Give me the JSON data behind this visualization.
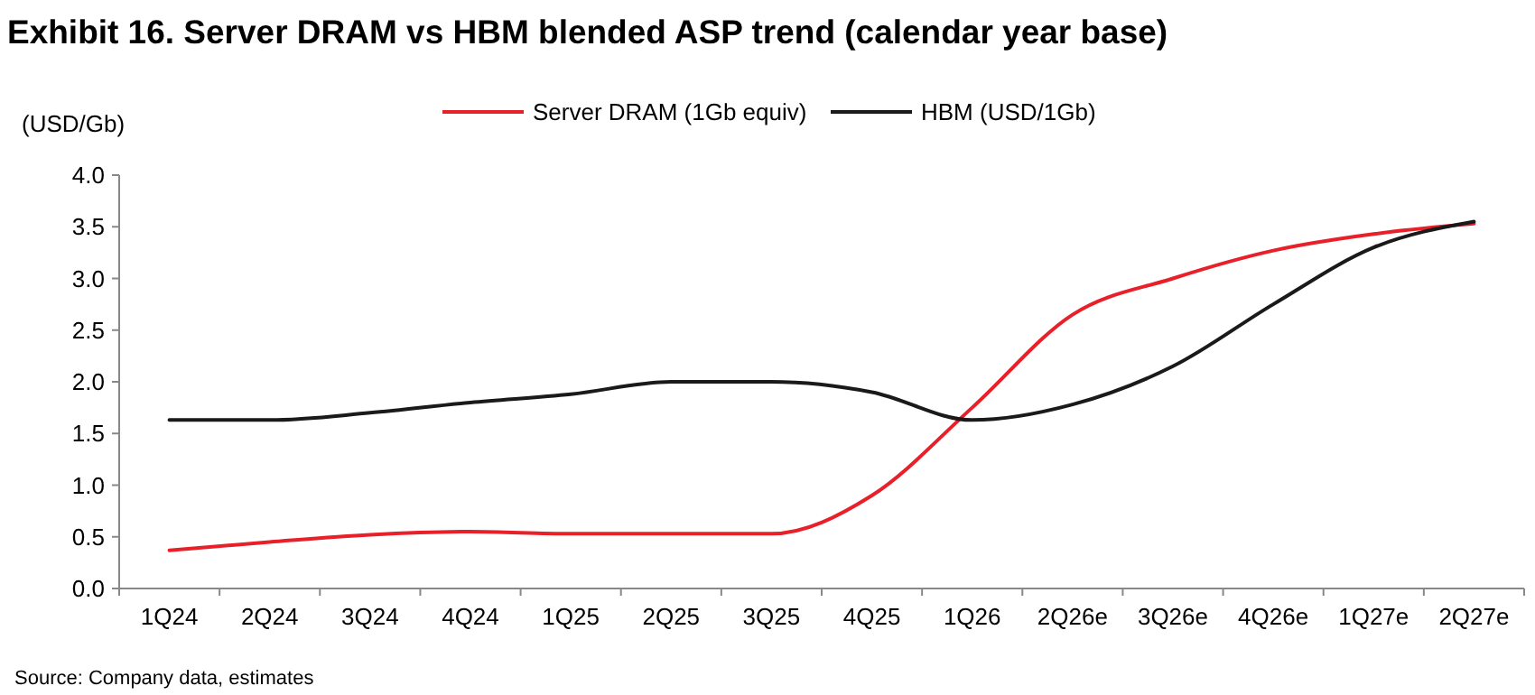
{
  "chart_data": {
    "type": "line",
    "title": "Exhibit 16. Server DRAM vs HBM blended ASP trend (calendar year base)",
    "ylabel": "(USD/Gb)",
    "annotations": [
      "Source: Company data, estimates"
    ],
    "categories": [
      "1Q24",
      "2Q24",
      "3Q24",
      "4Q24",
      "1Q25",
      "2Q25",
      "3Q25",
      "4Q25",
      "1Q26",
      "2Q26e",
      "3Q26e",
      "4Q26e",
      "1Q27e",
      "2Q27e"
    ],
    "series": [
      {
        "name": "Server DRAM (1Gb equiv)",
        "color": "#e8202a",
        "values": [
          0.37,
          0.45,
          0.52,
          0.55,
          0.53,
          0.53,
          0.53,
          0.9,
          1.75,
          2.65,
          3.0,
          3.27,
          3.43,
          3.53
        ]
      },
      {
        "name": "HBM (USD/1Gb)",
        "color": "#1a1a1a",
        "values": [
          1.63,
          1.63,
          1.7,
          1.8,
          1.88,
          2.0,
          2.0,
          1.9,
          1.63,
          1.78,
          2.15,
          2.75,
          3.3,
          3.55
        ]
      }
    ],
    "ylim": [
      0,
      4
    ],
    "yticks": [
      {
        "value": 0,
        "label": "0.0"
      },
      {
        "value": 0.5,
        "label": "0.5"
      },
      {
        "value": 1,
        "label": "1.0"
      },
      {
        "value": 1.5,
        "label": "1.5"
      },
      {
        "value": 2,
        "label": "2.0"
      },
      {
        "value": 2.5,
        "label": "2.5"
      },
      {
        "value": 3,
        "label": "3.0"
      },
      {
        "value": 3.5,
        "label": "3.5"
      },
      {
        "value": 4,
        "label": "4.0"
      }
    ],
    "legend": "top",
    "grid": false
  }
}
